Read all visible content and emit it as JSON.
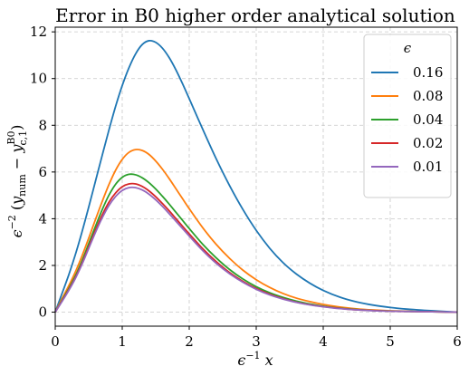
{
  "chart_data": {
    "type": "line",
    "title": "Error in B0 higher order analytical solution",
    "xlabel": "ϵ⁻¹ x",
    "ylabel": "ϵ⁻² (y_num − y_c,1^B0)",
    "xlim": [
      0,
      6
    ],
    "ylim": [
      -0.6,
      12.2
    ],
    "xticks": [
      "0",
      "1",
      "2",
      "3",
      "4",
      "5",
      "6"
    ],
    "yticks": [
      "0",
      "2",
      "4",
      "6",
      "8",
      "10",
      "12"
    ],
    "grid": true,
    "legend": {
      "title": "ϵ",
      "placement": "top-right"
    },
    "x": [
      0,
      0.1,
      0.2,
      0.3,
      0.4,
      0.5,
      0.6,
      0.7,
      0.8,
      0.9,
      1.0,
      1.1,
      1.2,
      1.3,
      1.4,
      1.5,
      1.6,
      1.7,
      1.8,
      1.9,
      2.0,
      2.2,
      2.4,
      2.6,
      2.8,
      3.0,
      3.2,
      3.4,
      3.6,
      3.8,
      4.0,
      4.25,
      4.5,
      4.75,
      5.0,
      5.25,
      5.5,
      5.75,
      6.0
    ],
    "series": [
      {
        "name": "0.16",
        "color": "#1f77b4",
        "values": [
          0.0,
          0.79,
          1.58,
          2.46,
          3.44,
          4.5,
          5.6,
          6.7,
          7.78,
          8.8,
          9.7,
          10.46,
          11.06,
          11.46,
          11.62,
          11.55,
          11.3,
          10.9,
          10.38,
          9.78,
          9.14,
          7.84,
          6.58,
          5.43,
          4.4,
          3.5,
          2.74,
          2.12,
          1.63,
          1.24,
          0.93,
          0.64,
          0.44,
          0.3,
          0.2,
          0.13,
          0.08,
          0.04,
          0.0
        ]
      },
      {
        "name": "0.08",
        "color": "#ff7f0e",
        "values": [
          0.0,
          0.57,
          1.12,
          1.72,
          2.41,
          3.17,
          3.96,
          4.73,
          5.45,
          6.07,
          6.54,
          6.84,
          6.96,
          6.92,
          6.75,
          6.47,
          6.12,
          5.72,
          5.29,
          4.86,
          4.43,
          3.62,
          2.91,
          2.31,
          1.8,
          1.39,
          1.06,
          0.8,
          0.6,
          0.45,
          0.33,
          0.22,
          0.14,
          0.09,
          0.06,
          0.04,
          0.02,
          0.01,
          0.0
        ]
      },
      {
        "name": "0.04",
        "color": "#2ca02c",
        "values": [
          0.0,
          0.5,
          1.0,
          1.55,
          2.2,
          2.93,
          3.67,
          4.38,
          5.0,
          5.47,
          5.77,
          5.9,
          5.88,
          5.75,
          5.54,
          5.27,
          4.96,
          4.63,
          4.28,
          3.93,
          3.58,
          2.91,
          2.33,
          1.83,
          1.42,
          1.09,
          0.83,
          0.63,
          0.47,
          0.35,
          0.26,
          0.17,
          0.11,
          0.07,
          0.05,
          0.03,
          0.02,
          0.01,
          0.0
        ]
      },
      {
        "name": "0.02",
        "color": "#d62728",
        "values": [
          0.0,
          0.47,
          0.95,
          1.48,
          2.1,
          2.8,
          3.5,
          4.15,
          4.7,
          5.1,
          5.37,
          5.49,
          5.49,
          5.38,
          5.19,
          4.94,
          4.65,
          4.34,
          4.01,
          3.68,
          3.35,
          2.72,
          2.17,
          1.7,
          1.32,
          1.01,
          0.77,
          0.58,
          0.43,
          0.32,
          0.24,
          0.16,
          0.1,
          0.07,
          0.04,
          0.03,
          0.02,
          0.01,
          0.0
        ]
      },
      {
        "name": "0.01",
        "color": "#9467bd",
        "values": [
          0.0,
          0.45,
          0.92,
          1.44,
          2.05,
          2.73,
          3.41,
          4.03,
          4.56,
          4.95,
          5.21,
          5.33,
          5.33,
          5.23,
          5.05,
          4.81,
          4.53,
          4.22,
          3.9,
          3.58,
          3.26,
          2.64,
          2.1,
          1.65,
          1.28,
          0.98,
          0.74,
          0.56,
          0.42,
          0.31,
          0.23,
          0.15,
          0.1,
          0.06,
          0.04,
          0.03,
          0.02,
          0.01,
          0.0
        ]
      }
    ]
  }
}
